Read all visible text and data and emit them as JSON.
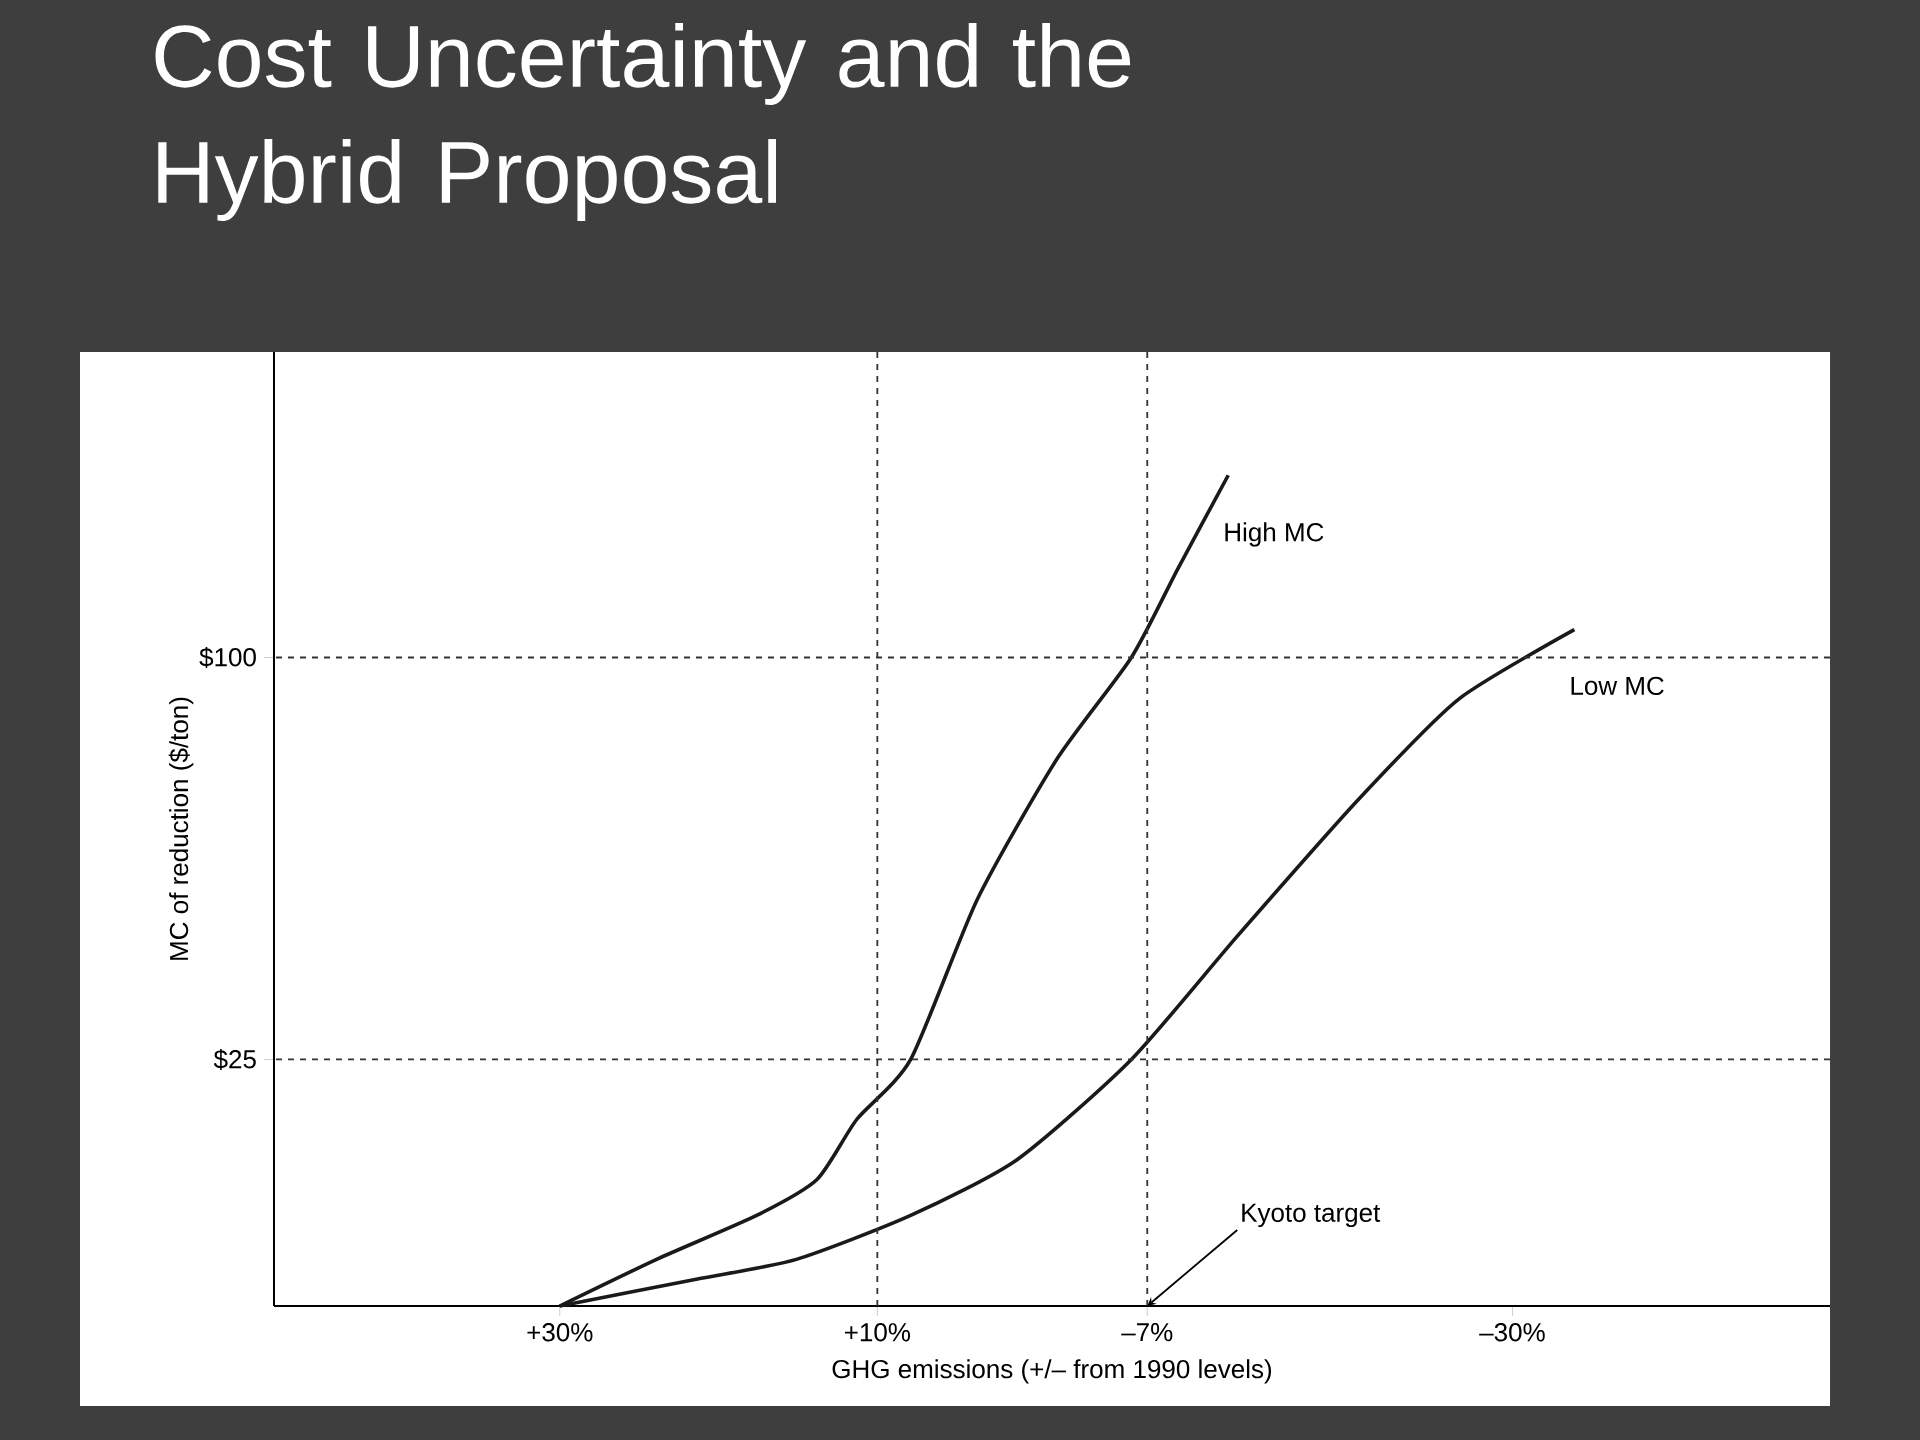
{
  "chart_data": {
    "type": "line",
    "title": "Cost Uncertainty and the Hybrid Proposal",
    "xlabel": "GHG emissions (+/– from 1990 levels)",
    "ylabel": "MC of reduction ($/ton)",
    "series": [
      {
        "name": "High MC",
        "color": "#1a1a1a",
        "x": [
          30,
          23.9,
          17.6,
          13.8,
          11.3,
          7.9,
          3.7,
          -1.3,
          -6.0,
          -8.9,
          -12.1
        ],
        "values": [
          -21,
          -12.3,
          -4.1,
          2.6,
          13.8,
          25,
          54.9,
          81,
          100,
          116.4,
          134
        ]
      },
      {
        "name": "Low MC",
        "color": "#1a1a1a",
        "x": [
          30,
          21.4,
          15.1,
          7.9,
          1.2,
          -6.0,
          -12.7,
          -20.3,
          -26.6,
          -33.9
        ],
        "values": [
          -21,
          -16,
          -12.3,
          -4.1,
          6.3,
          25,
          48.1,
          73.5,
          92.2,
          105.2
        ]
      }
    ],
    "xlim": [
      48,
      -50
    ],
    "ylim": [
      -21,
      157
    ],
    "xticks": [
      {
        "value": 30,
        "label": "+30%"
      },
      {
        "value": 10,
        "label": "+10%"
      },
      {
        "value": -7,
        "label": "–7%"
      },
      {
        "value": -30,
        "label": "–30%"
      }
    ],
    "yticks": [
      {
        "value": 25,
        "label": "$25"
      },
      {
        "value": 100,
        "label": "$100"
      }
    ],
    "ref_lines": [
      {
        "axis": "y",
        "value": 100,
        "line_style": "dashed",
        "color": "#333333"
      },
      {
        "axis": "y",
        "value": 25,
        "line_style": "dashed",
        "color": "#333333"
      },
      {
        "axis": "x",
        "value": 10,
        "line_style": "dashed",
        "color": "#333333"
      },
      {
        "axis": "x",
        "value": -7,
        "line_style": "dashed",
        "color": "#333333"
      }
    ],
    "annotations": [
      {
        "text": "Kyoto target",
        "x": -7,
        "y": -21
      }
    ],
    "grid": false,
    "legend": false,
    "marker": "none",
    "line_style": "solid"
  }
}
